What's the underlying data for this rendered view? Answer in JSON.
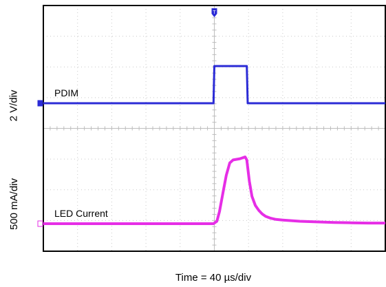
{
  "chart_data": {
    "type": "line",
    "title": "",
    "xlabel": "Time = 40 µs/div",
    "ylabel_top": "2 V/div",
    "ylabel_bottom": "500 mA/div",
    "xlim": [
      0,
      400
    ],
    "x_unit": "µs",
    "grid": true,
    "divisions": {
      "x": 10,
      "y": 8
    },
    "series": [
      {
        "name": "PDIM",
        "label": "PDIM",
        "unit": "V",
        "color": "#2b2bd6",
        "baseline": 0,
        "x": [
          0,
          199,
          200,
          238,
          239,
          400
        ],
        "y": [
          0,
          0,
          4.1,
          4.1,
          0,
          0
        ]
      },
      {
        "name": "LED Current",
        "label": "LED Current",
        "unit": "A",
        "color": "#e62ee6",
        "baseline": 0,
        "x": [
          0,
          199,
          203,
          206,
          210,
          214,
          218,
          222,
          226,
          230,
          236,
          238,
          241,
          244,
          248,
          252,
          256,
          260,
          266,
          272,
          280,
          290,
          300,
          320,
          340,
          360,
          380,
          400
        ],
        "y": [
          0,
          0,
          0.04,
          0.2,
          0.5,
          0.8,
          1.0,
          1.05,
          1.06,
          1.07,
          1.1,
          1.05,
          0.7,
          0.45,
          0.3,
          0.22,
          0.16,
          0.12,
          0.09,
          0.07,
          0.06,
          0.05,
          0.04,
          0.03,
          0.02,
          0.015,
          0.01,
          0.01
        ]
      }
    ],
    "trigger_marker": {
      "x": 200,
      "label": "T"
    }
  }
}
